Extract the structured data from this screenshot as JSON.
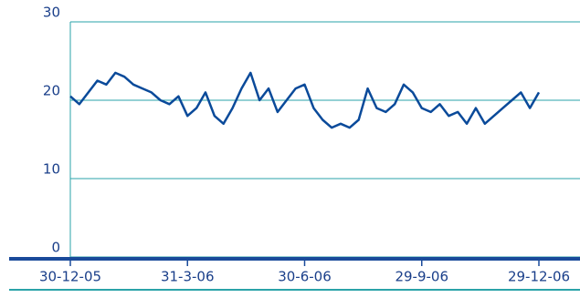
{
  "chart_data": {
    "type": "line",
    "categories": [
      "30-12-05",
      null,
      null,
      null,
      null,
      null,
      null,
      null,
      null,
      null,
      null,
      null,
      null,
      "31-3-06",
      null,
      null,
      null,
      null,
      null,
      null,
      null,
      null,
      null,
      null,
      null,
      null,
      "30-6-06",
      null,
      null,
      null,
      null,
      null,
      null,
      null,
      null,
      null,
      null,
      null,
      null,
      "29-9-06",
      null,
      null,
      null,
      null,
      null,
      null,
      null,
      null,
      null,
      null,
      null,
      null,
      "29-12-06"
    ],
    "values": [
      20.5,
      19.5,
      21,
      22.5,
      22,
      23.5,
      23,
      22,
      21.5,
      21,
      20,
      19.5,
      20.5,
      18,
      19,
      21,
      18,
      17,
      19,
      21.5,
      23.5,
      20,
      21.5,
      18.5,
      20,
      21.5,
      22,
      19,
      17.5,
      16.5,
      17,
      16.5,
      17.5,
      21.5,
      19,
      18.5,
      19.5,
      22,
      21,
      19,
      18.5,
      19.5,
      18,
      18.5,
      17,
      19,
      17,
      18,
      19,
      20,
      21,
      19,
      21
    ],
    "color": "#0a4a9a",
    "ylim": [
      0,
      30
    ],
    "yticks": [
      0,
      10,
      20,
      30
    ],
    "grid": true
  }
}
